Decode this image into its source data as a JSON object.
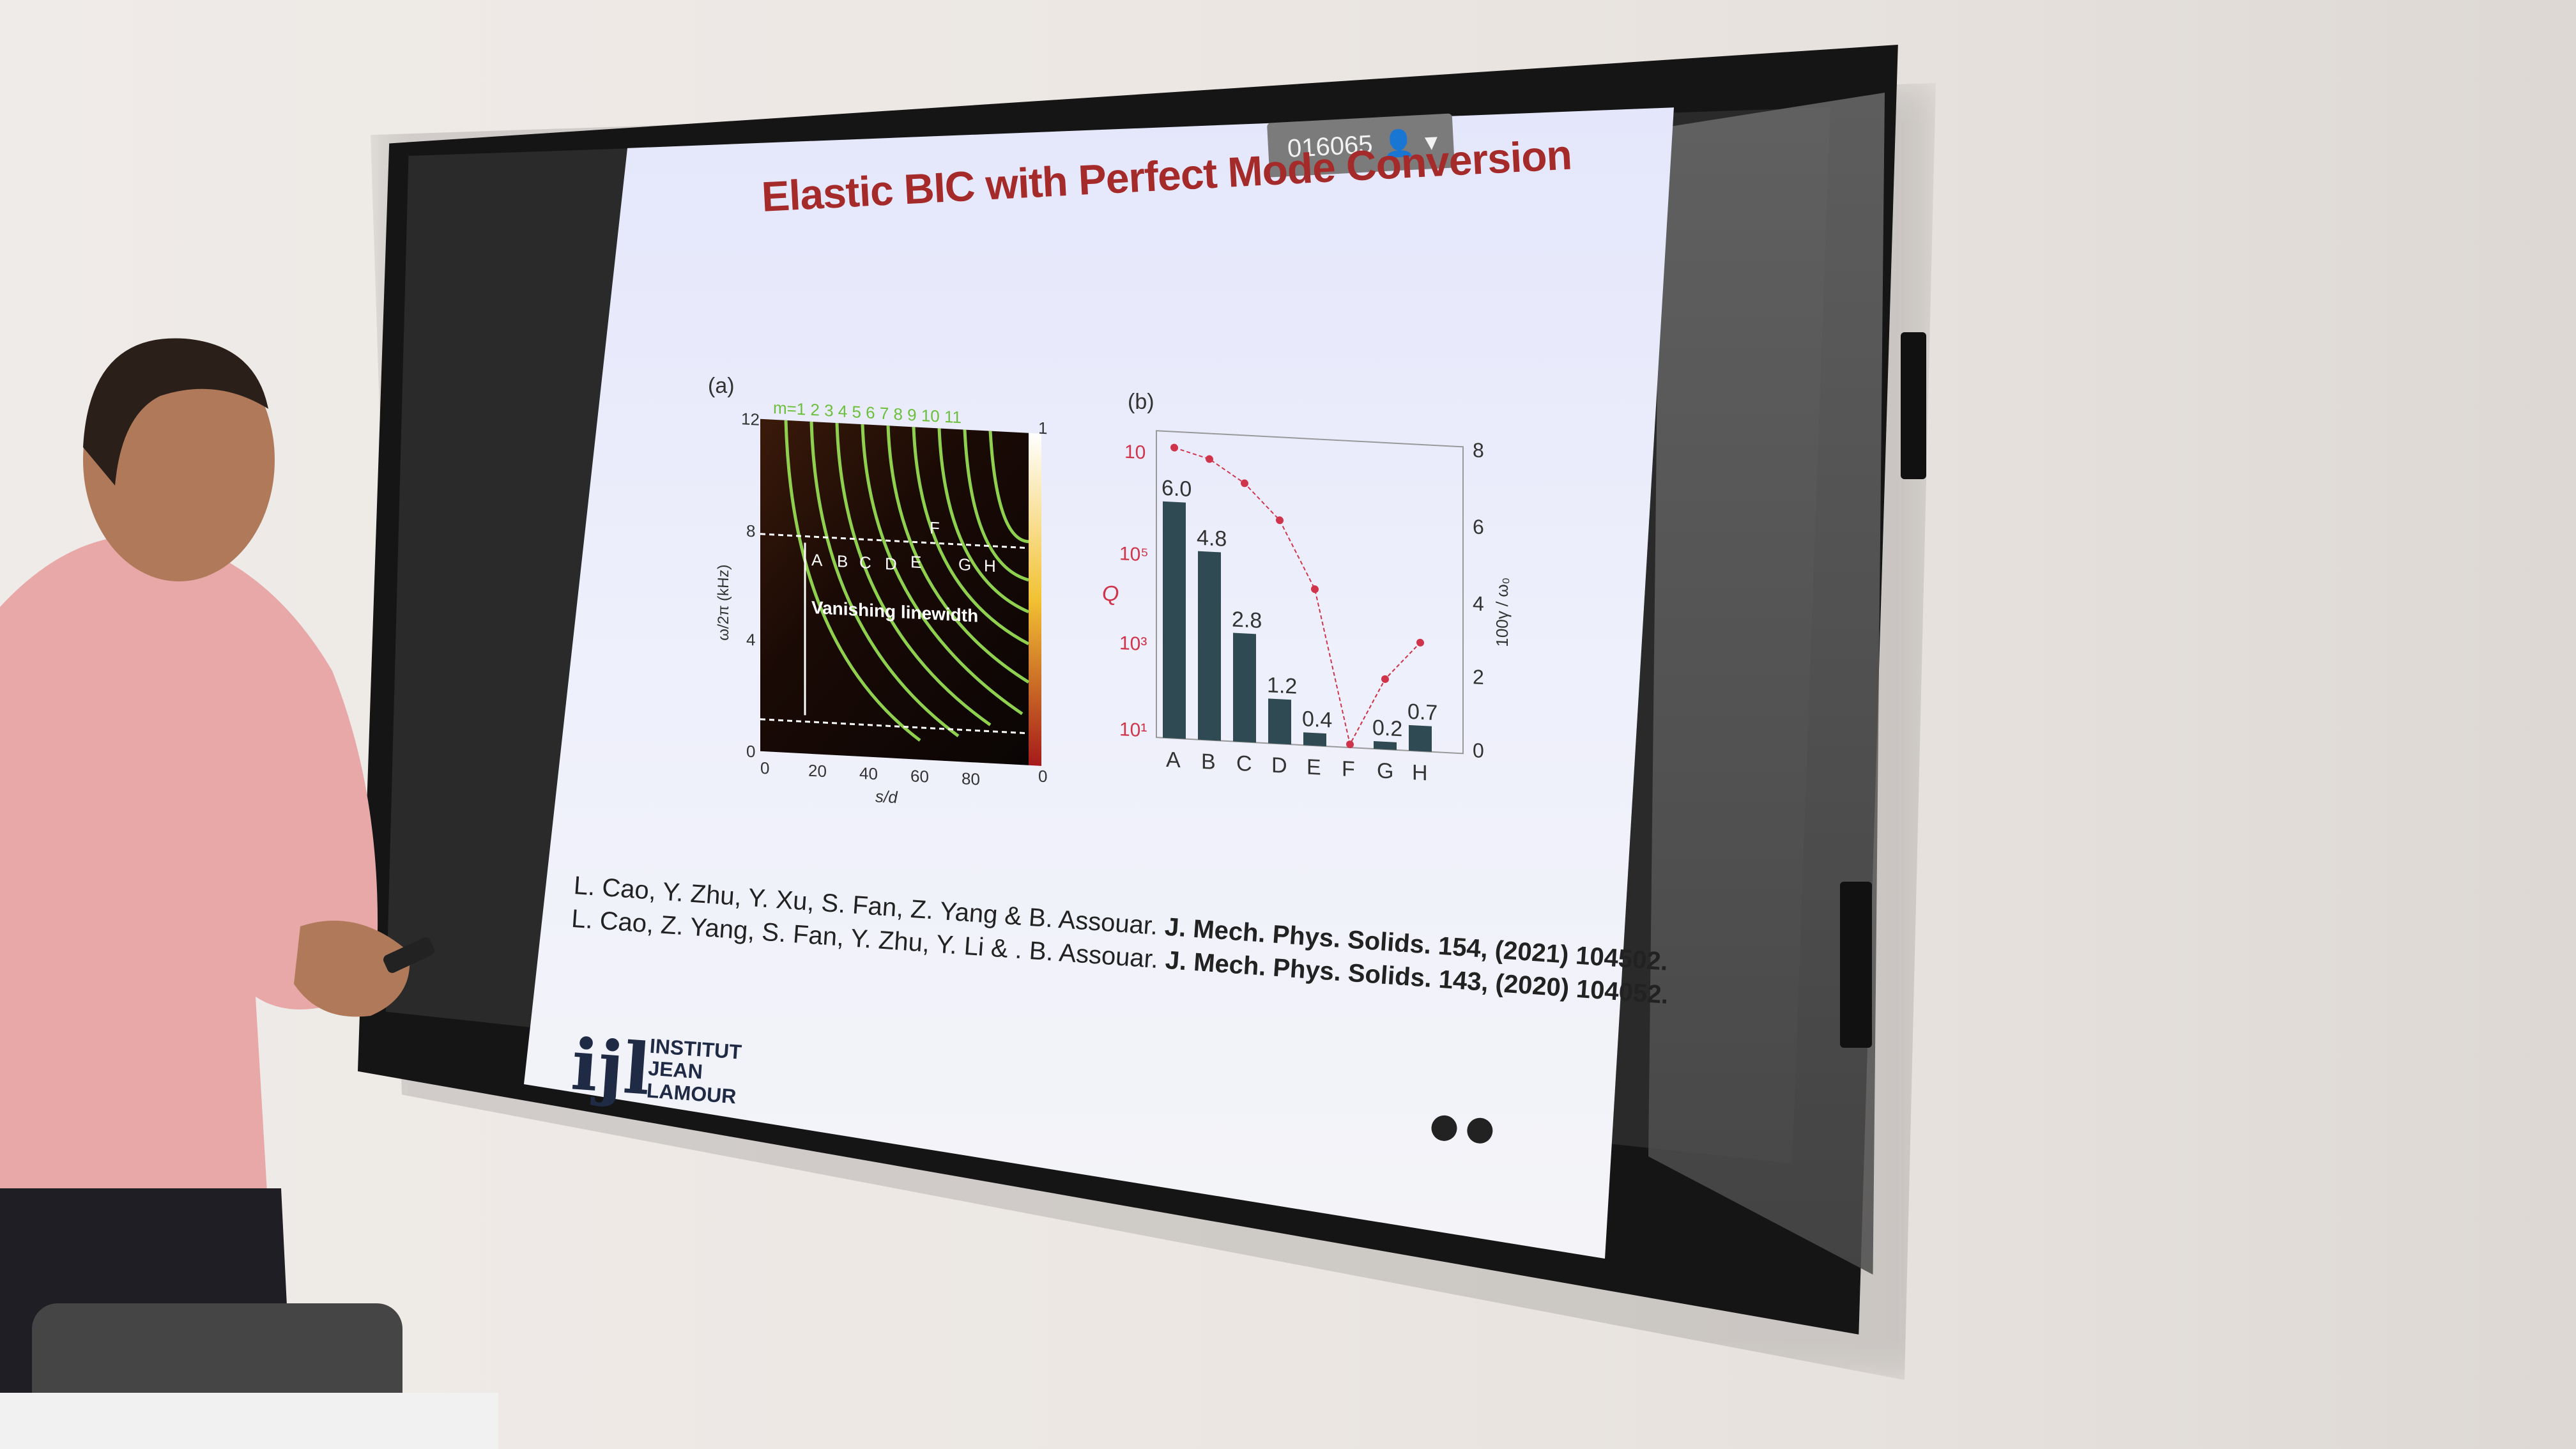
{
  "slide": {
    "title": "Elastic BIC with Perfect Mode Conversion",
    "session_id": "016065",
    "panel_a_label": "(a)",
    "panel_b_label": "(b)",
    "panel_a": {
      "mode_labels": "m=1 2 3 4 5 6 7 8 9 10 11",
      "y_axis_label": "ω/2π (kHz)",
      "x_axis_label": "s/d",
      "y_ticks": [
        "12",
        "8",
        "4",
        "0"
      ],
      "x_ticks": [
        "0",
        "20",
        "40",
        "60",
        "80"
      ],
      "right_ticks": [
        "1",
        "0"
      ],
      "annotation": "Vanishing linewidth",
      "point_labels": [
        "A",
        "B",
        "C",
        "D",
        "E",
        "F",
        "G",
        "H"
      ]
    },
    "panel_b": {
      "y_left_label": "Q",
      "y_right_label": "100γ / ω₀",
      "y_left_ticks": [
        "10",
        "10⁵",
        "10³",
        "10¹"
      ],
      "y_right_ticks": [
        "8",
        "6",
        "4",
        "2",
        "0"
      ],
      "categories": [
        "A",
        "B",
        "C",
        "D",
        "E",
        "F",
        "G",
        "H"
      ],
      "bar_labels": [
        "6.0",
        "4.8",
        "2.8",
        "1.2",
        "0.4",
        "",
        "0.2",
        "0.7"
      ]
    },
    "citations": [
      {
        "authors": "L. Cao, Y. Zhu, Y. Xu, S. Fan, Z. Yang & B. Assouar.",
        "journal": "J. Mech. Phys. Solids. 154, (2021) 104502."
      },
      {
        "authors": "L. Cao, Z. Yang, S. Fan, Y. Zhu, Y. Li & . B. Assouar.",
        "journal": "J. Mech. Phys. Solids. 143, (2020) 104052."
      }
    ],
    "logo": {
      "line1": "INSTITUT",
      "line2": "JEAN LAMOUR",
      "mark": "ijl"
    }
  },
  "colors": {
    "title_red": "#a52a2a",
    "bar_color": "#2f4a52",
    "curve_red": "#d0344a",
    "green_curves": "#8fd14f"
  }
}
